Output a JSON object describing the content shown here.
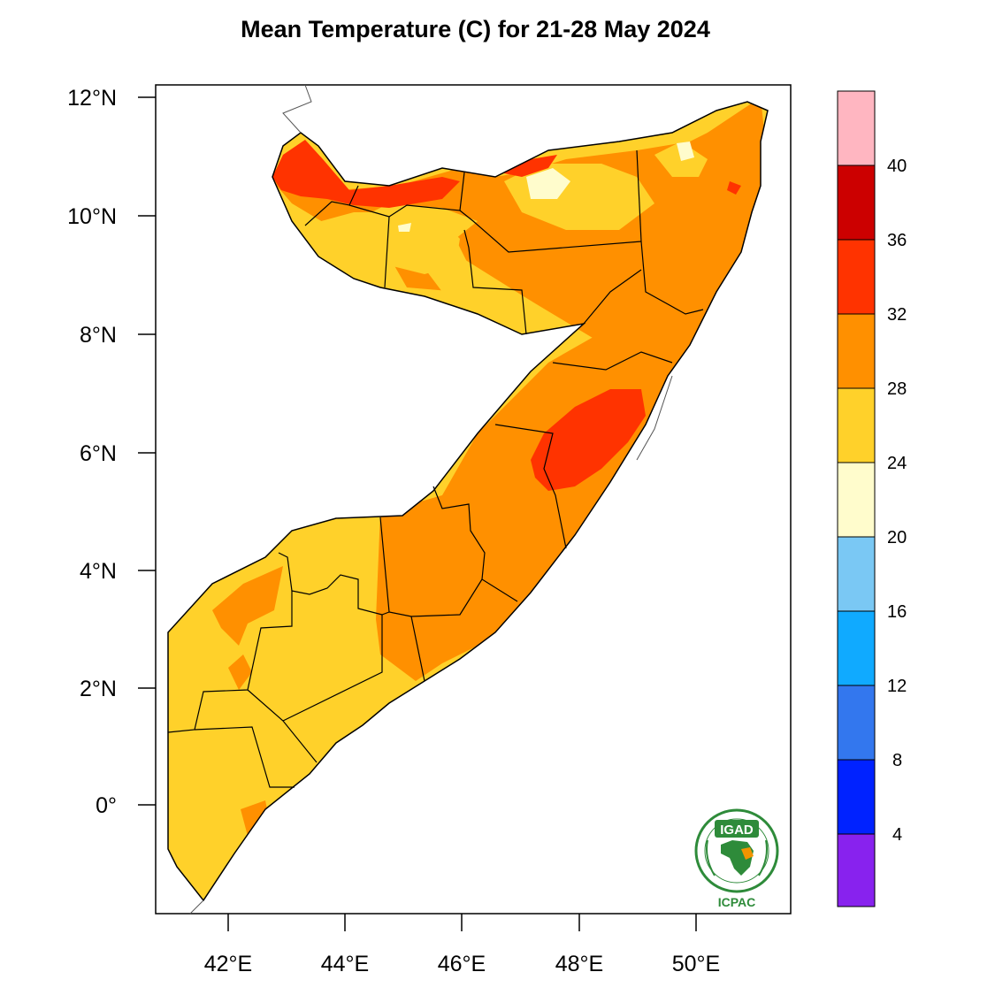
{
  "title": "Mean Temperature (C) for 21-28 May 2024",
  "map": {
    "lat_labels": [
      "12°N",
      "10°N",
      "8°N",
      "6°N",
      "4°N",
      "2°N",
      "0°"
    ],
    "lon_labels": [
      "42°E",
      "44°E",
      "46°E",
      "48°E",
      "50°E"
    ]
  },
  "colorbar": {
    "labels": [
      "40",
      "36",
      "32",
      "28",
      "24",
      "20",
      "16",
      "12",
      "8",
      "4"
    ],
    "colors": [
      "#ffb6c1",
      "#cc0000",
      "#ff3300",
      "#ff9000",
      "#ffd12a",
      "#fffccc",
      "#7ac8f4",
      "#10aaff",
      "#3377ee",
      "#0022ff",
      "#1a00ff",
      "#8822ee"
    ]
  },
  "logo": {
    "top_text": "IGAD",
    "bottom_text": "ICPAC",
    "ring_color": "#2e8b3a",
    "accent_color": "#f29400"
  }
}
